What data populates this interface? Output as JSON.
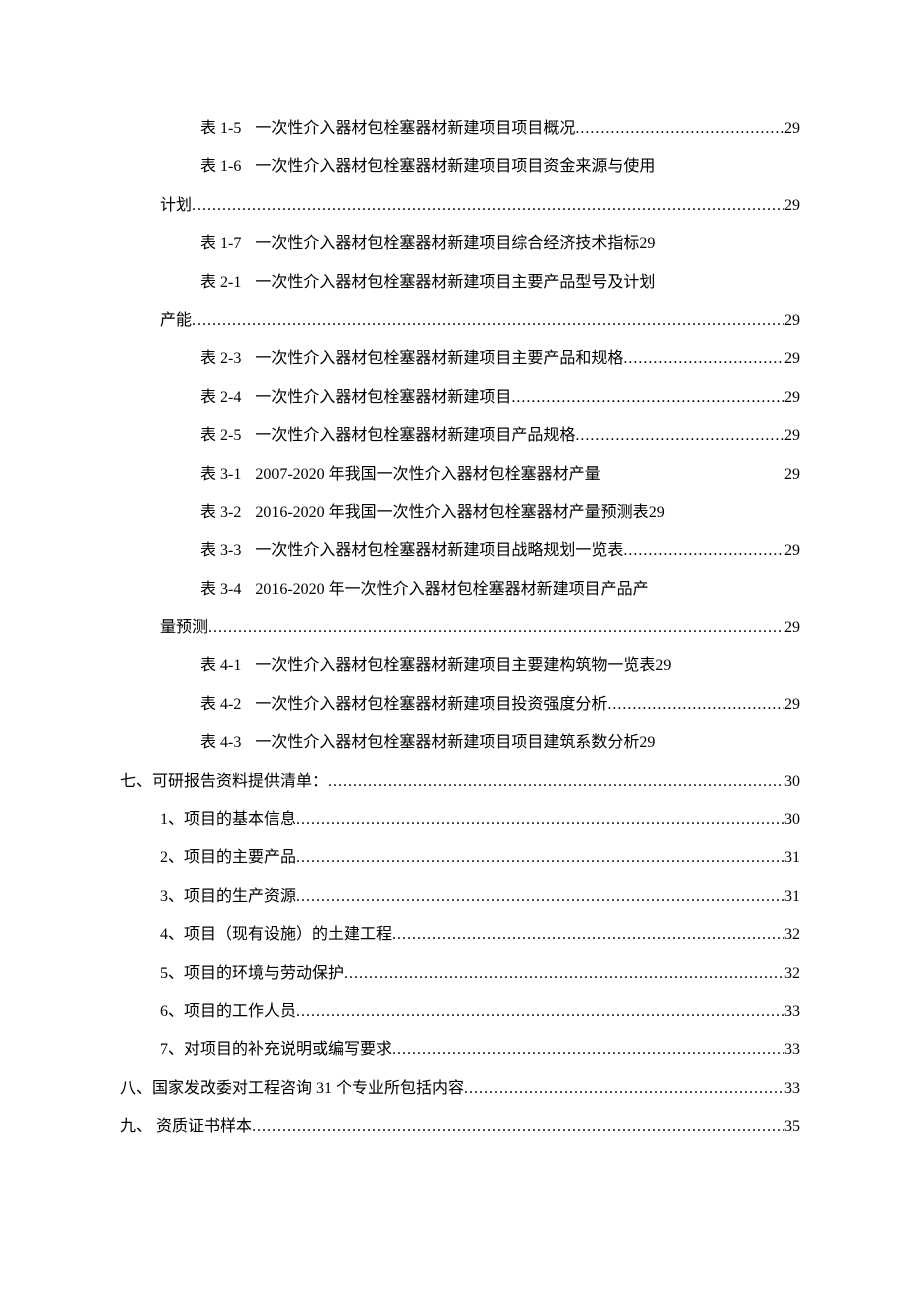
{
  "toc": {
    "entries": [
      {
        "indent": 2,
        "prefix": "表 1-5",
        "title": "一次性介入器材包栓塞器材新建项目项目概况",
        "page": "29",
        "leader": "dots"
      },
      {
        "indent": 2,
        "prefix": "表 1-6",
        "title": "一次性介入器材包栓塞器材新建项目项目资金来源与使用",
        "page": "",
        "leader": "none",
        "wrap": true
      },
      {
        "indent": "cont",
        "prefix": "",
        "title": "计划",
        "page": "29",
        "leader": "dots"
      },
      {
        "indent": 2,
        "prefix": "表 1-7",
        "title": "一次性介入器材包栓塞器材新建项目综合经济技术指标",
        "page": "29",
        "leader": "none"
      },
      {
        "indent": 2,
        "prefix": "表 2-1",
        "title": "一次性介入器材包栓塞器材新建项目主要产品型号及计划",
        "page": "",
        "leader": "none",
        "wrap": true
      },
      {
        "indent": "cont",
        "prefix": "",
        "title": "产能",
        "page": "29",
        "leader": "dots"
      },
      {
        "indent": 2,
        "prefix": "表 2-3",
        "title": "一次性介入器材包栓塞器材新建项目主要产品和规格",
        "page": "29",
        "leader": "dots"
      },
      {
        "indent": 2,
        "prefix": "表 2-4",
        "title": "一次性介入器材包栓塞器材新建项目",
        "page": "29",
        "leader": "dots"
      },
      {
        "indent": 2,
        "prefix": "表 2-5",
        "title": "一次性介入器材包栓塞器材新建项目产品规格",
        "page": "29",
        "leader": "dots"
      },
      {
        "indent": 2,
        "prefix": "表 3-1",
        "title": "2007-2020 年我国一次性介入器材包栓塞器材产量",
        "page": "29",
        "leader": "space"
      },
      {
        "indent": 2,
        "prefix": "表 3-2",
        "title": "2016-2020 年我国一次性介入器材包栓塞器材产量预测表",
        "page": "29",
        "leader": "none"
      },
      {
        "indent": 2,
        "prefix": "表 3-3",
        "title": "一次性介入器材包栓塞器材新建项目战略规划一览表",
        "page": "29",
        "leader": "dots"
      },
      {
        "indent": 2,
        "prefix": "表 3-4",
        "title": "2016-2020 年一次性介入器材包栓塞器材新建项目产品产",
        "page": "",
        "leader": "none",
        "wrap": true
      },
      {
        "indent": "cont",
        "prefix": "",
        "title": "量预测",
        "page": "29",
        "leader": "dots"
      },
      {
        "indent": 2,
        "prefix": "表 4-1",
        "title": "一次性介入器材包栓塞器材新建项目主要建构筑物一览表",
        "page": "29",
        "leader": "none"
      },
      {
        "indent": 2,
        "prefix": "表 4-2",
        "title": "一次性介入器材包栓塞器材新建项目投资强度分析",
        "page": "29",
        "leader": "dots"
      },
      {
        "indent": 2,
        "prefix": "表 4-3",
        "title": "一次性介入器材包栓塞器材新建项目项目建筑系数分析",
        "page": "29",
        "leader": "none"
      },
      {
        "indent": 0,
        "prefix": "七、",
        "title": "可研报告资料提供清单：",
        "page": "30",
        "leader": "dots",
        "nogap": true
      },
      {
        "indent": 1,
        "prefix": "1、",
        "title": "项目的基本信息",
        "page": "30",
        "leader": "dots",
        "nogap": true
      },
      {
        "indent": 1,
        "prefix": "2、",
        "title": "项目的主要产品",
        "page": "31",
        "leader": "dots",
        "nogap": true
      },
      {
        "indent": 1,
        "prefix": "3、",
        "title": "项目的生产资源",
        "page": "31",
        "leader": "dots",
        "nogap": true
      },
      {
        "indent": 1,
        "prefix": "4、",
        "title": "项目（现有设施）的土建工程",
        "page": "32",
        "leader": "dots",
        "nogap": true
      },
      {
        "indent": 1,
        "prefix": "5、",
        "title": "项目的环境与劳动保护",
        "page": "32",
        "leader": "dots",
        "nogap": true
      },
      {
        "indent": 1,
        "prefix": "6、",
        "title": "项目的工作人员",
        "page": "33",
        "leader": "dots",
        "nogap": true
      },
      {
        "indent": 1,
        "prefix": "7、",
        "title": "对项目的补充说明或编写要求",
        "page": "33",
        "leader": "dots",
        "nogap": true
      },
      {
        "indent": 0,
        "prefix": "八、",
        "title": "国家发改委对工程咨询 31 个专业所包括内容",
        "page": "33",
        "leader": "dots",
        "nogap": true
      },
      {
        "indent": 0,
        "prefix": "九、",
        "title": " 资质证书样本",
        "page": "35",
        "leader": "dots",
        "nogap": true
      }
    ]
  }
}
